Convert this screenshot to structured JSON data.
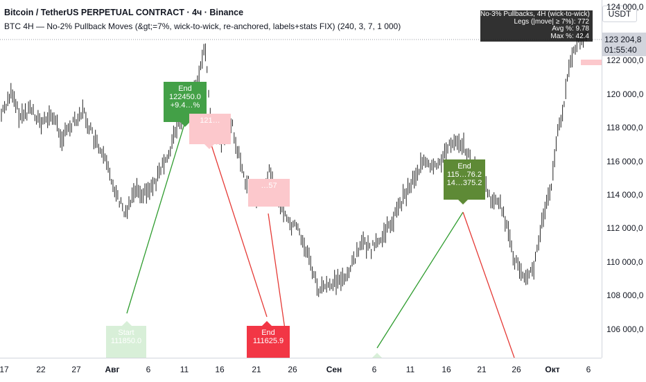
{
  "header": {
    "title": "Bitcoin / TetherUS PERPETUAL CONTRACT · 4ч · Binance",
    "indicator": "BTC 4H — No-2% Pullback Moves (&gt;=7%, wick-to-wick, re-anchored, labels+stats FIX) (240, 3, 7, 1 000)"
  },
  "stats": {
    "line1": "No-3% Pullbacks, 4H (wick-to-wick)",
    "line2": "Legs (|move| ≥ 7%): 772",
    "line3": "Avg %: 9.78",
    "line4": "Max %: 42.4"
  },
  "price_scale": {
    "currency": "USDT",
    "ticks": [
      "124 000,0",
      "122 000,0",
      "120 000,0",
      "118 000,0",
      "116 000,0",
      "114 000,0",
      "112 000,0",
      "110 000,0",
      "108 000,0",
      "106 000,0"
    ],
    "last_price": "123 204,8",
    "countdown": "01:55:40"
  },
  "time_scale": {
    "ticks": [
      "17",
      "22",
      "27",
      "Авг",
      "6",
      "11",
      "16",
      "21",
      "26",
      "Сен",
      "6",
      "11",
      "16",
      "21",
      "26",
      "Окт",
      "6"
    ]
  },
  "labels": {
    "end_green_1": {
      "l1": "End",
      "l2": "122450.0",
      "l3": "+9.4…%"
    },
    "start_pink_1": {
      "l1": "",
      "l2": "121…"
    },
    "pink_2": {
      "l1": "",
      "l2": "…57"
    },
    "end_green_2": {
      "l1": "End",
      "l2": "115…76.2",
      "l3": "14…375.2"
    },
    "start_1": {
      "l1": "Start",
      "l2": "111850.0"
    },
    "end_red_1": {
      "l1": "End",
      "l2": "111625.9"
    }
  },
  "colors": {
    "up_line": "#2e9c2e",
    "down_line": "#e53935",
    "label_green": "#43a047",
    "label_olive": "#5e8a36",
    "label_red": "#f23645",
    "label_pink": "#fcc8cc",
    "label_pale_green": "#d8efd8",
    "candle": "#222222"
  }
}
